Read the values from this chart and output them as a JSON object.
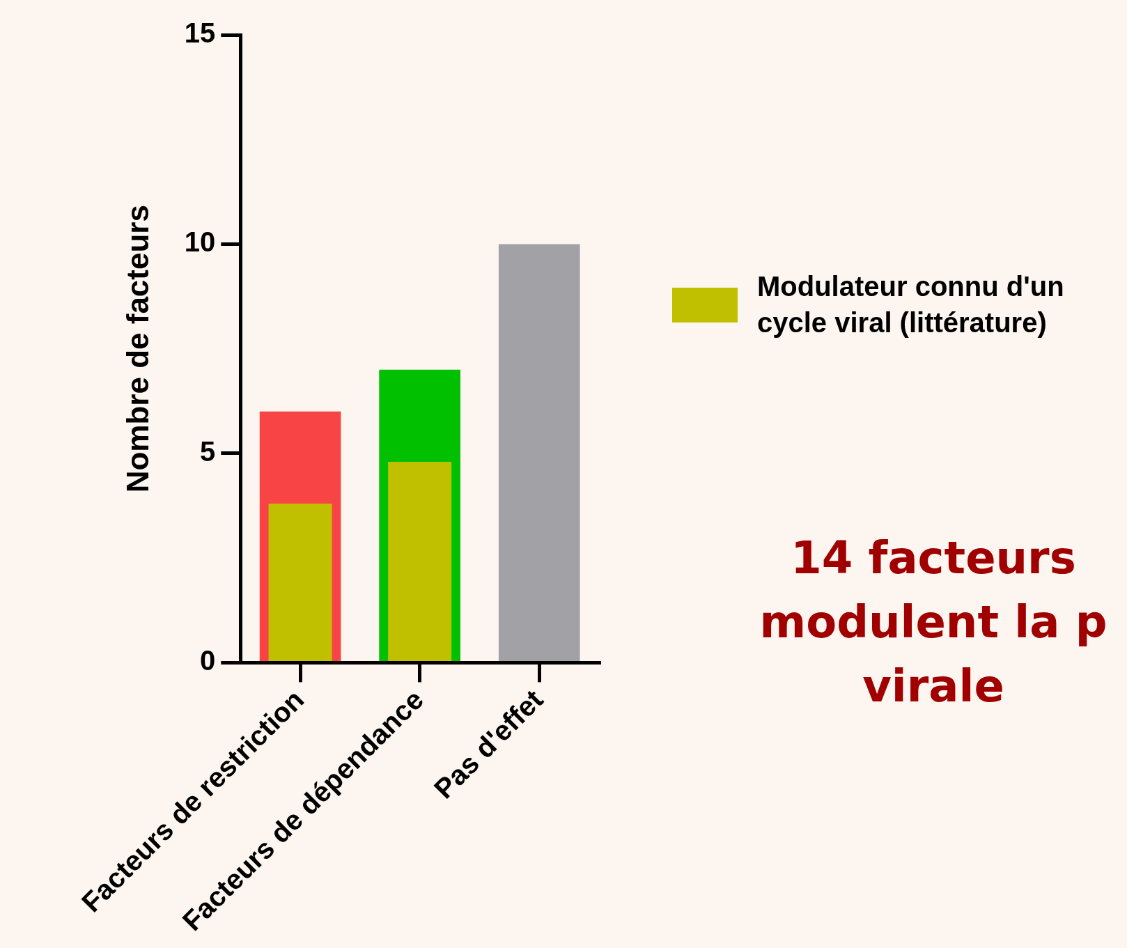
{
  "chart_data": {
    "type": "bar",
    "categories": [
      "Facteurs de restriction",
      "Facteurs de dépendance",
      "Pas d'effet"
    ],
    "series": [
      {
        "colors": [
          "#f84444",
          "#00c000",
          "#a2a1a6"
        ],
        "values": [
          6,
          7,
          10
        ]
      },
      {
        "name": "Modulateur connu d'un cycle viral (littérature)",
        "color": "#c0c000",
        "values": [
          3.8,
          4.8,
          null
        ]
      }
    ],
    "ylabel": "Nombre de facteurs",
    "ylim": [
      0,
      15
    ],
    "yticks": [
      0,
      5,
      10,
      15
    ],
    "grid": false,
    "legend": "right",
    "annotations": [
      "14 facteurs modulent la p virale"
    ]
  }
}
